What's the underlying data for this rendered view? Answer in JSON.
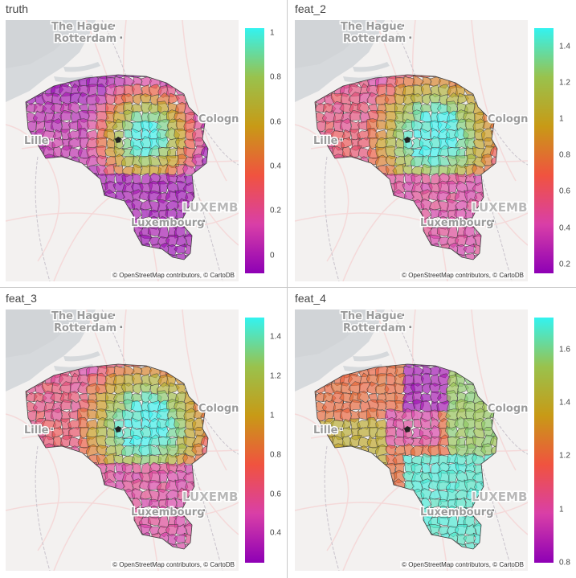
{
  "attribution": "© OpenStreetMap contributors, © CartoDB",
  "map_labels": {
    "the_hague": "The Hague",
    "rotterdam": "Rotterdam",
    "cologne": "Cologne",
    "lille": "Lille",
    "luxembourg": "Luxembourg",
    "luxembourg_country": "LUXEMBOURG"
  },
  "colorscale": [
    "#8e00b5",
    "#d93fa7",
    "#f0533f",
    "#c89a16",
    "#99c24d",
    "#33f3f0"
  ],
  "panels": [
    {
      "title": "truth",
      "pattern": "radial",
      "range": [
        -0.08,
        1.02
      ],
      "ticks": [
        "1",
        "0.8",
        "0.6",
        "0.4",
        "0.2",
        "0"
      ],
      "tick_values": [
        1,
        0.8,
        0.6,
        0.4,
        0.2,
        0
      ]
    },
    {
      "title": "feat_2",
      "pattern": "smooth",
      "range": [
        0.15,
        1.5
      ],
      "ticks": [
        "1.4",
        "1.2",
        "1",
        "0.8",
        "0.6",
        "0.4",
        "0.2"
      ],
      "tick_values": [
        1.4,
        1.2,
        1,
        0.8,
        0.6,
        0.4,
        0.2
      ]
    },
    {
      "title": "feat_3",
      "pattern": "smooth",
      "range": [
        0.25,
        1.5
      ],
      "ticks": [
        "1.4",
        "1.2",
        "1",
        "0.8",
        "0.6",
        "0.4"
      ],
      "tick_values": [
        1.4,
        1.2,
        1,
        0.8,
        0.6,
        0.4
      ]
    },
    {
      "title": "feat_4",
      "pattern": "regions",
      "range": [
        0.8,
        1.72
      ],
      "ticks": [
        "1.6",
        "1.4",
        "1.2",
        "1",
        "0.8"
      ],
      "tick_values": [
        1.6,
        1.4,
        1.2,
        1,
        0.8
      ]
    }
  ]
}
